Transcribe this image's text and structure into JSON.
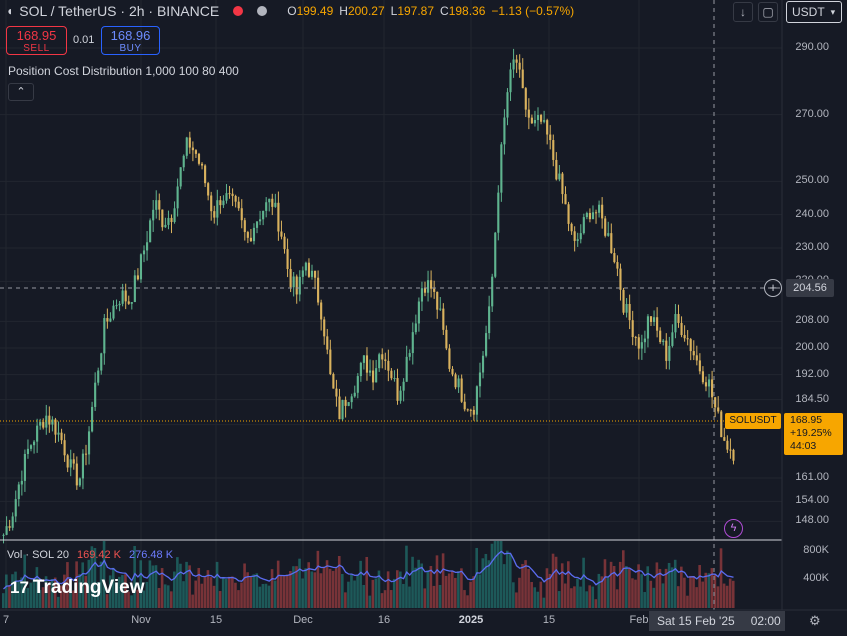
{
  "header": {
    "title": "SOL / TetherUS · 2h · BINANCE",
    "ohlc": [
      {
        "k": "O",
        "v": "199.49"
      },
      {
        "k": "H",
        "v": "200.27"
      },
      {
        "k": "L",
        "v": "197.87"
      },
      {
        "k": "C",
        "v": "198.36"
      }
    ],
    "change": "−1.13 (−0.57%)",
    "currency": "USDT"
  },
  "trade": {
    "sell_price": "168.95",
    "sell_label": "SELL",
    "spread": "0.01",
    "buy_price": "168.96",
    "buy_label": "BUY"
  },
  "indicator": {
    "label": "Position Cost Distribution 1,000 100 80 400"
  },
  "volume": {
    "label": "Vol · SOL 20",
    "value1": "169.42 K",
    "value2": "276.48 K",
    "axis": [
      "800K",
      "400K"
    ]
  },
  "crosshair": {
    "price": "204.56",
    "date": "Sat 15 Feb '25",
    "time": "02:00"
  },
  "last_price": {
    "symbol": "SOLUSDT",
    "price": "168.95",
    "change": "+19.25%",
    "countdown": "44:03"
  },
  "branding": {
    "logo": "TradingView"
  },
  "colors": {
    "up": "#26a69a",
    "down": "#ef5350",
    "candle": "#d9b25e",
    "accent": "#f7a600",
    "volume_ma": "#5b6cf0",
    "buy": "#2962ff",
    "sell": "#f23645"
  },
  "icons": [
    "tradingview-logo",
    "down-arrow-icon",
    "maximize-icon",
    "plus-circle-icon",
    "collapse-chevron-icon",
    "lightning-icon",
    "settings-gear-icon"
  ],
  "chart_data": {
    "type": "line",
    "title": "SOL / TetherUS · 2h · BINANCE",
    "xlabel": "",
    "ylabel": "",
    "ylim": [
      143,
      296
    ],
    "grid": true,
    "price_ticks": [
      290.0,
      270.0,
      250.0,
      240.0,
      230.0,
      220.0,
      208.0,
      200.0,
      192.0,
      184.5,
      177.0,
      161.0,
      154.0,
      148.0
    ],
    "time_ticks": [
      "7",
      "Nov",
      "15",
      "Dec",
      "16",
      "2025",
      "15",
      "Feb"
    ],
    "series": [
      {
        "values": [
          144,
          150,
          161,
          170,
          175,
          180,
          177,
          172,
          164,
          160,
          172,
          190,
          206,
          212,
          216,
          214,
          222,
          232,
          244,
          238,
          240,
          252,
          262,
          258,
          250,
          240,
          246,
          244,
          240,
          232,
          238,
          242,
          244,
          236,
          222,
          216,
          226,
          220,
          210,
          190,
          180,
          186,
          190,
          196,
          192,
          200,
          194,
          186,
          196,
          208,
          220,
          218,
          210,
          196,
          190,
          184,
          182,
          196,
          212,
          250,
          276,
          288,
          274,
          266,
          268,
          262,
          252,
          242,
          230,
          236,
          242,
          240,
          234,
          226,
          212,
          206,
          200,
          210,
          204,
          198,
          208,
          206,
          200,
          194,
          190,
          180,
          172,
          169
        ]
      }
    ]
  }
}
